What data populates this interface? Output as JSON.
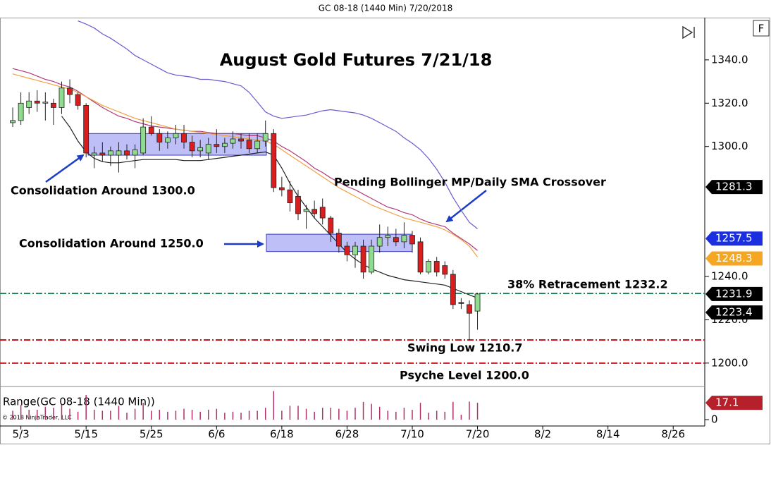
{
  "chart_data": {
    "type": "candlestick",
    "header": "GC 08-18 (1440 Min)  7/20/2018",
    "title": "August Gold Futures 7/21/18",
    "copyright": "© 2018 NinjaTrader, LLC",
    "open": [
      1311,
      1312,
      1318,
      1321,
      1320,
      1320,
      1318,
      1327,
      1324,
      1319,
      1296,
      1297,
      1296,
      1296,
      1298,
      1296,
      1297,
      1309,
      1306,
      1302,
      1304,
      1306,
      1302,
      1298,
      1297,
      1301,
      1300,
      1301.5,
      1303.5,
      1303,
      1299,
      1302.5,
      1306,
      1281,
      1280,
      1277,
      1270,
      1271,
      1272,
      1267,
      1260,
      1254,
      1250,
      1254,
      1242,
      1254,
      1258,
      1258,
      1256,
      1259,
      1256,
      1242,
      1247,
      1245,
      1241,
      1228,
      1227,
      1224
    ],
    "high": [
      1318,
      1325,
      1325,
      1326,
      1325,
      1322,
      1330,
      1331,
      1325,
      1320,
      1300,
      1302,
      1300,
      1302,
      1301,
      1301,
      1313,
      1314,
      1308,
      1307,
      1310,
      1310,
      1305,
      1303,
      1304,
      1308,
      1304,
      1307,
      1306,
      1306,
      1306,
      1312,
      1308,
      1286,
      1284,
      1280,
      1273,
      1275,
      1276,
      1268,
      1262,
      1256,
      1256,
      1257,
      1257,
      1264,
      1263,
      1262,
      1265,
      1261,
      1258,
      1248,
      1249,
      1247,
      1243,
      1230,
      1229,
      1232.5
    ],
    "low": [
      1309,
      1310,
      1315,
      1316,
      1312,
      1310,
      1315,
      1320,
      1317,
      1295,
      1290,
      1293,
      1291,
      1288,
      1294,
      1290,
      1296,
      1305,
      1298,
      1299,
      1301,
      1299,
      1295,
      1295,
      1294,
      1297,
      1297,
      1299,
      1299,
      1297,
      1297,
      1300,
      1279,
      1277,
      1270,
      1266,
      1262,
      1267,
      1264,
      1256,
      1251,
      1247,
      1244,
      1239,
      1241,
      1251,
      1254,
      1254,
      1253,
      1251,
      1241,
      1241,
      1240,
      1239,
      1225,
      1225,
      1210.7,
      1215.4
    ],
    "close": [
      1312,
      1320,
      1321,
      1320,
      1320.5,
      1318,
      1327,
      1324,
      1319,
      1297,
      1297,
      1296,
      1298,
      1298,
      1296,
      1298.5,
      1309,
      1306,
      1302,
      1304,
      1306,
      1302,
      1298,
      1299.5,
      1301,
      1300,
      1301.5,
      1303.5,
      1302.5,
      1299,
      1302.5,
      1306,
      1281,
      1280,
      1274,
      1269,
      1271,
      1269,
      1267,
      1260,
      1254,
      1250,
      1254,
      1242,
      1254,
      1258,
      1259,
      1256,
      1259,
      1255,
      1242,
      1247,
      1242,
      1241,
      1227,
      1227.5,
      1223,
      1231.9
    ],
    "up_color": "#8fdc8f",
    "down_color": "#d81e1e",
    "lines": [
      {
        "color": "#6a5acd",
        "values": [
          null,
          null,
          null,
          null,
          null,
          null,
          null,
          null,
          1358,
          1356.5,
          1354.7,
          1352,
          1350,
          1347.5,
          1345,
          1342,
          1340,
          1338,
          1336,
          1334,
          1333,
          1332.5,
          1332,
          1331,
          1331,
          1330.5,
          1330,
          1329,
          1328,
          1325,
          1320.5,
          1316,
          1314,
          1313,
          1313.5,
          1314,
          1314.5,
          1315.5,
          1316.5,
          1317,
          1316.5,
          1316,
          1315.5,
          1314.5,
          1313,
          1311,
          1309,
          1307,
          1304,
          1301.5,
          1298.5,
          1294.5,
          1289.5,
          1283.5,
          1276.5,
          1270.5,
          1265,
          1262
        ]
      },
      {
        "color": "#b03a7a",
        "values": [
          1336,
          1335,
          1334,
          1332.5,
          1331,
          1330,
          1328.5,
          1327.5,
          1325.5,
          1323,
          1320.5,
          1318,
          1316,
          1314,
          1313,
          1311.5,
          1310.5,
          1309.5,
          1309,
          1308.5,
          1308,
          1307.5,
          1307,
          1307,
          1306.5,
          1306,
          1306,
          1306,
          1305.5,
          1305,
          1305,
          1304,
          1302.5,
          1300,
          1298,
          1295.5,
          1293,
          1290,
          1288,
          1285.5,
          1283.5,
          1281.5,
          1280,
          1278,
          1276,
          1274,
          1272,
          1271,
          1269.5,
          1268.5,
          1266.5,
          1265,
          1264,
          1263,
          1260,
          1257.5,
          1255,
          1252
        ]
      },
      {
        "color": "#f0a040",
        "values": [
          1333.5,
          1332.5,
          1331.5,
          1330.5,
          1329.5,
          1328.5,
          1327.5,
          1326.5,
          1325,
          1323,
          1321,
          1319,
          1317.5,
          1316,
          1314.5,
          1313,
          1312,
          1311,
          1310,
          1309,
          1308,
          1307.5,
          1307,
          1306.5,
          1306,
          1305.5,
          1305,
          1304.5,
          1304,
          1303.5,
          1303,
          1302.5,
          1301,
          1298.5,
          1296,
          1293.5,
          1291,
          1288.5,
          1286,
          1283.5,
          1281,
          1279,
          1277,
          1275,
          1273,
          1271.5,
          1270,
          1268.5,
          1267,
          1266,
          1265,
          1264,
          1263,
          1261.5,
          1259.5,
          1257,
          1254,
          1249
        ]
      },
      {
        "color": "#222222",
        "values": [
          null,
          null,
          null,
          null,
          null,
          null,
          1314,
          1309,
          1302.5,
          1297.5,
          1294.5,
          1293,
          1292.5,
          1292.5,
          1293,
          1293.5,
          1294,
          1294,
          1294,
          1294,
          1294,
          1293.5,
          1293.5,
          1293.5,
          1294,
          1294.5,
          1295,
          1295.5,
          1296,
          1296.5,
          1297,
          1297.5,
          1296,
          1290,
          1283,
          1277,
          1272,
          1267,
          1263,
          1259,
          1255,
          1251,
          1248,
          1245.5,
          1243.5,
          1242,
          1240.5,
          1239.5,
          1238.5,
          1238,
          1237.5,
          1237,
          1236.5,
          1236,
          1234.5,
          1233,
          1231.5,
          1230
        ]
      }
    ],
    "zones": [
      {
        "low": 1296,
        "high": 1306
      },
      {
        "low": 1251.5,
        "high": 1259.5
      }
    ],
    "levels": [
      {
        "value": 1232.2,
        "color": "#1e8a5a"
      },
      {
        "value": 1210.7,
        "color": "#c0181c"
      },
      {
        "value": 1200,
        "color": "#c0181c"
      }
    ],
    "annotations": [
      "Consolidation Around 1300.0",
      "Pending Bollinger MP/Daily SMA Crossover",
      "Consolidation Around 1250.0",
      "38% Retracement 1232.2",
      "Swing Low 1210.7",
      "Psyche Level 1200.0"
    ],
    "price_markers": [
      {
        "value": 1281.3,
        "color": "#000000"
      },
      {
        "value": 1257.5,
        "color": "#1a2fe0"
      },
      {
        "value": 1248.3,
        "color": "#f5a623"
      },
      {
        "value": 1231.9,
        "color": "#000000"
      },
      {
        "value": 1223.4,
        "color": "#000000"
      }
    ],
    "ylim": [
      1189.2,
      1359.5
    ],
    "yticks": [
      {
        "value": 1200,
        "label": "1200.0"
      },
      {
        "value": 1220,
        "label": "1220.0"
      },
      {
        "value": 1240,
        "label": "1240.0"
      },
      {
        "value": 1300,
        "label": "1300.0"
      },
      {
        "value": 1320,
        "label": "1320.0"
      },
      {
        "value": 1340,
        "label": "1340.0"
      }
    ],
    "xlim": [
      -1.56,
      84.87
    ],
    "xticks": [
      {
        "value": 1,
        "label": "5/3"
      },
      {
        "value": 9,
        "label": "5/15"
      },
      {
        "value": 17,
        "label": "5/25"
      },
      {
        "value": 25,
        "label": "6/6"
      },
      {
        "value": 33,
        "label": "6/18"
      },
      {
        "value": 41,
        "label": "6/28"
      },
      {
        "value": 49,
        "label": "7/10"
      },
      {
        "value": 57,
        "label": "7/20"
      },
      {
        "value": 65,
        "label": "8/2"
      },
      {
        "value": 73,
        "label": "8/14"
      },
      {
        "value": 81,
        "label": "8/26"
      }
    ],
    "range_panel": {
      "label": "Range(GC 08-18 (1440 Min))",
      "color": "#b0306a",
      "values": [
        9,
        15,
        10,
        10,
        13,
        12,
        15,
        11,
        8,
        25,
        10,
        9,
        9,
        14,
        7,
        11,
        17,
        9,
        10,
        8,
        9,
        11,
        10,
        8,
        10,
        11,
        7,
        8,
        7,
        9,
        9,
        12,
        29,
        9,
        14,
        14,
        11,
        8,
        12,
        12,
        11,
        9,
        12,
        18,
        16,
        13,
        9,
        8,
        12,
        10,
        17,
        7,
        9,
        8,
        18,
        5,
        18.3,
        17.1
      ],
      "ylim": [
        0,
        33.6
      ],
      "yticks": [
        0
      ],
      "last_value": 17.1,
      "last_color": "#b5202a"
    }
  }
}
